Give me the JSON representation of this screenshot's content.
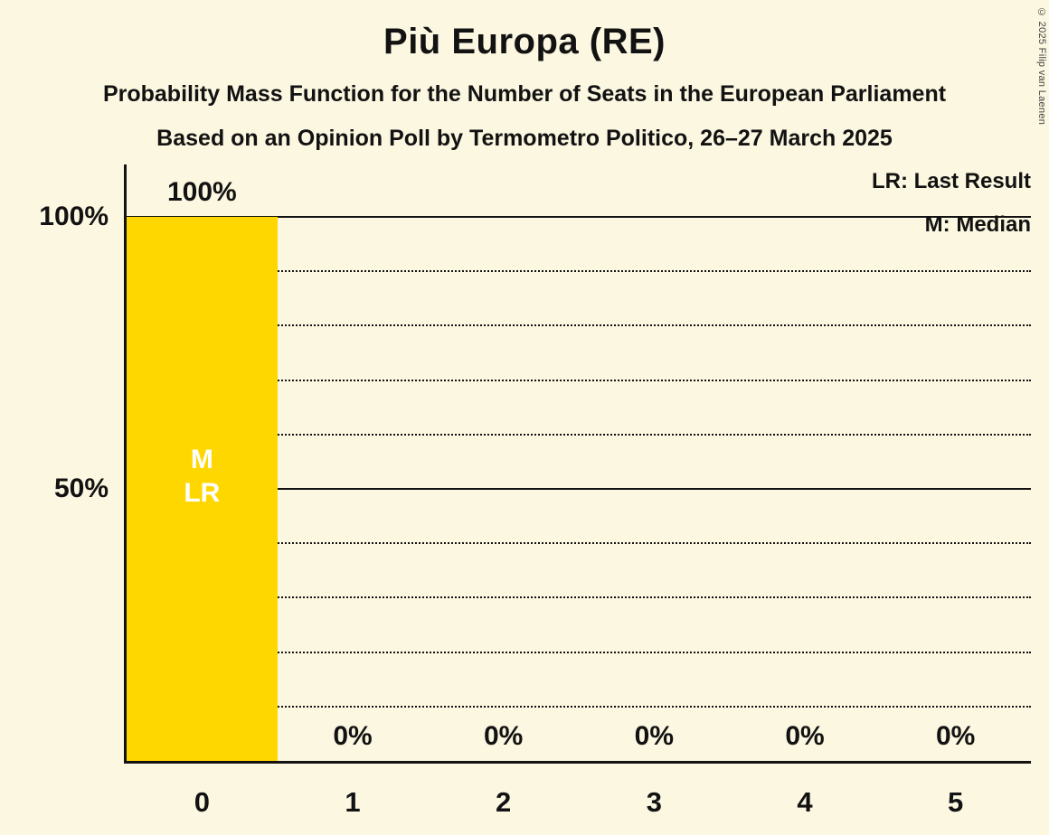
{
  "title": "Più Europa (RE)",
  "subtitles": {
    "line1": "Probability Mass Function for the Number of Seats in the European Parliament",
    "line2": "Based on an Opinion Poll by Termometro Politico, 26–27 March 2025"
  },
  "legend": {
    "last_result": "LR: Last Result",
    "median": "M: Median"
  },
  "copyright": "© 2025 Filip van Laenen",
  "colors": {
    "background": "#FCF7E1",
    "bar": "#FFD700",
    "text": "#121212",
    "bar_label_text": "#FFFFFF"
  },
  "chart_data": {
    "type": "bar",
    "title": "Più Europa (RE)",
    "categories": [
      "0",
      "1",
      "2",
      "3",
      "4",
      "5"
    ],
    "values": [
      100,
      0,
      0,
      0,
      0,
      0
    ],
    "value_labels": [
      "100%",
      "0%",
      "0%",
      "0%",
      "0%",
      "0%"
    ],
    "ylim": [
      0,
      100
    ],
    "yticks": [
      {
        "value": 100,
        "label": "100%"
      },
      {
        "value": 50,
        "label": "50%"
      }
    ],
    "gridlines": {
      "solid_at": [
        100,
        50
      ],
      "dotted_at": [
        90,
        80,
        70,
        60,
        40,
        30,
        20,
        10
      ]
    },
    "grid": "horizontal-only",
    "legend_position": "top-right",
    "annotations": {
      "median_label": "M",
      "last_result_label": "LR",
      "median_category": "0",
      "last_result_category": "0"
    }
  }
}
